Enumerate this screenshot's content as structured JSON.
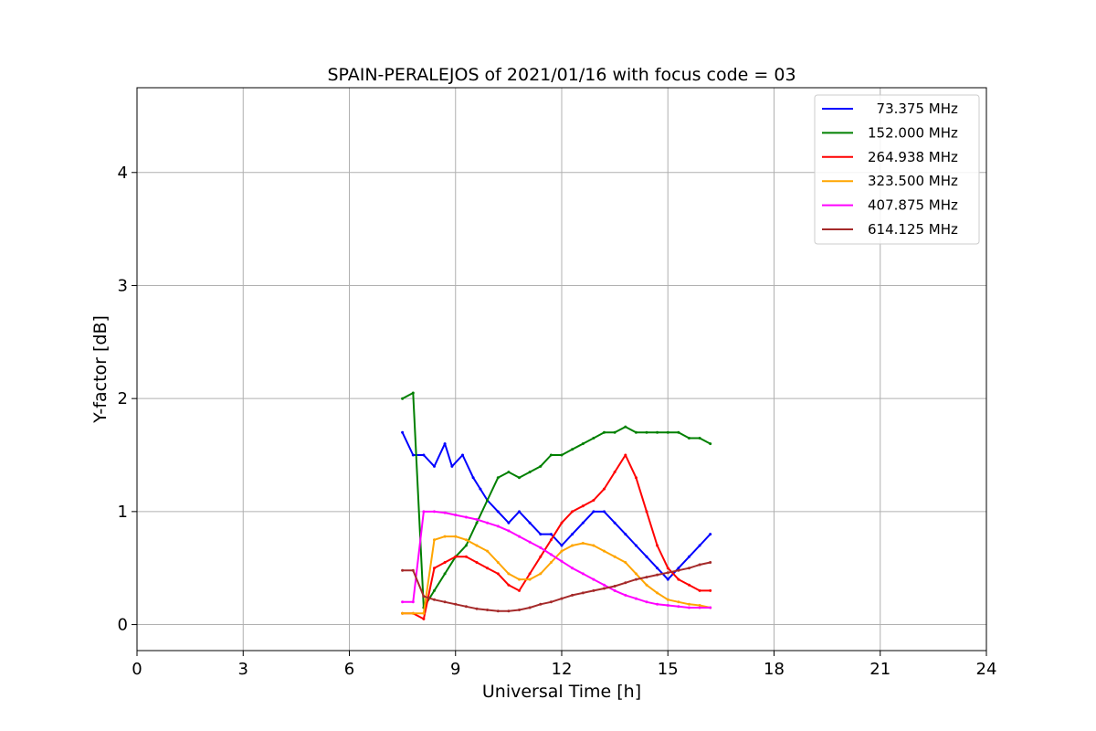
{
  "chart_data": {
    "type": "line",
    "title": "SPAIN-PERALEJOS of 2021/01/16 with focus code = 03",
    "xlabel": "Universal Time [h]",
    "ylabel": "Y-factor [dB]",
    "xlim": [
      0,
      24
    ],
    "ylim": [
      -0.23,
      4.75
    ],
    "xticks": [
      0,
      3,
      6,
      9,
      12,
      15,
      18,
      21,
      24
    ],
    "yticks": [
      0,
      1,
      2,
      3,
      4
    ],
    "grid": true,
    "legend_position": "top-right",
    "series": [
      {
        "name": "  73.375 MHz",
        "color": "#0000ff",
        "x": [
          7.5,
          7.8,
          8.1,
          8.4,
          8.7,
          8.9,
          9.2,
          9.5,
          9.7,
          9.9,
          10.2,
          10.5,
          10.8,
          11.1,
          11.4,
          11.7,
          12.0,
          12.3,
          12.6,
          12.9,
          13.2,
          13.5,
          13.8,
          14.1,
          14.4,
          14.7,
          15.0,
          15.3,
          15.6,
          15.9,
          16.2
        ],
        "y": [
          1.7,
          1.5,
          1.5,
          1.4,
          1.6,
          1.4,
          1.5,
          1.3,
          1.2,
          1.1,
          1.0,
          0.9,
          1.0,
          0.9,
          0.8,
          0.8,
          0.7,
          0.8,
          0.9,
          1.0,
          1.0,
          0.9,
          0.8,
          0.7,
          0.6,
          0.5,
          0.4,
          0.5,
          0.6,
          0.7,
          0.8
        ]
      },
      {
        "name": "152.000 MHz",
        "color": "#008000",
        "x": [
          7.5,
          7.8,
          8.1,
          8.4,
          8.7,
          9.0,
          9.3,
          9.6,
          9.9,
          10.2,
          10.5,
          10.8,
          11.1,
          11.4,
          11.7,
          12.0,
          12.3,
          12.6,
          12.9,
          13.2,
          13.5,
          13.8,
          14.1,
          14.4,
          14.7,
          15.0,
          15.3,
          15.6,
          15.9,
          16.2
        ],
        "y": [
          2.0,
          2.05,
          0.15,
          0.3,
          0.45,
          0.6,
          0.7,
          0.9,
          1.1,
          1.3,
          1.35,
          1.3,
          1.35,
          1.4,
          1.5,
          1.5,
          1.55,
          1.6,
          1.65,
          1.7,
          1.7,
          1.75,
          1.7,
          1.7,
          1.7,
          1.7,
          1.7,
          1.65,
          1.65,
          1.6
        ]
      },
      {
        "name": "264.938 MHz",
        "color": "#ff0000",
        "x": [
          7.5,
          7.8,
          8.1,
          8.4,
          8.7,
          9.0,
          9.3,
          9.6,
          9.9,
          10.2,
          10.5,
          10.8,
          11.1,
          11.4,
          11.7,
          12.0,
          12.3,
          12.6,
          12.9,
          13.2,
          13.5,
          13.8,
          14.1,
          14.4,
          14.7,
          15.0,
          15.3,
          15.6,
          15.9,
          16.2
        ],
        "y": [
          0.1,
          0.1,
          0.05,
          0.5,
          0.55,
          0.6,
          0.6,
          0.55,
          0.5,
          0.45,
          0.35,
          0.3,
          0.45,
          0.6,
          0.75,
          0.9,
          1.0,
          1.05,
          1.1,
          1.2,
          1.35,
          1.5,
          1.3,
          1.0,
          0.7,
          0.5,
          0.4,
          0.35,
          0.3,
          0.3
        ]
      },
      {
        "name": "323.500 MHz",
        "color": "#ffa500",
        "x": [
          7.5,
          7.8,
          8.1,
          8.4,
          8.7,
          9.0,
          9.3,
          9.6,
          9.9,
          10.2,
          10.5,
          10.8,
          11.1,
          11.4,
          11.7,
          12.0,
          12.3,
          12.6,
          12.9,
          13.2,
          13.5,
          13.8,
          14.1,
          14.4,
          14.7,
          15.0,
          15.3,
          15.6,
          15.9,
          16.2
        ],
        "y": [
          0.1,
          0.1,
          0.1,
          0.75,
          0.78,
          0.78,
          0.75,
          0.7,
          0.65,
          0.55,
          0.45,
          0.4,
          0.4,
          0.45,
          0.55,
          0.65,
          0.7,
          0.72,
          0.7,
          0.65,
          0.6,
          0.55,
          0.45,
          0.35,
          0.28,
          0.22,
          0.2,
          0.18,
          0.17,
          0.15
        ]
      },
      {
        "name": "407.875 MHz",
        "color": "#ff00ff",
        "x": [
          7.5,
          7.8,
          8.1,
          8.4,
          8.7,
          9.0,
          9.3,
          9.6,
          9.9,
          10.2,
          10.5,
          10.8,
          11.1,
          11.4,
          11.7,
          12.0,
          12.3,
          12.6,
          12.9,
          13.2,
          13.5,
          13.8,
          14.1,
          14.4,
          14.7,
          15.0,
          15.3,
          15.6,
          15.9,
          16.2
        ],
        "y": [
          0.2,
          0.2,
          1.0,
          1.0,
          0.99,
          0.97,
          0.95,
          0.93,
          0.9,
          0.87,
          0.83,
          0.78,
          0.73,
          0.68,
          0.62,
          0.56,
          0.5,
          0.45,
          0.4,
          0.35,
          0.3,
          0.26,
          0.23,
          0.2,
          0.18,
          0.17,
          0.16,
          0.15,
          0.15,
          0.15
        ]
      },
      {
        "name": "614.125 MHz",
        "color": "#a52a2a",
        "x": [
          7.5,
          7.8,
          8.1,
          8.4,
          8.7,
          9.0,
          9.3,
          9.6,
          9.9,
          10.2,
          10.5,
          10.8,
          11.1,
          11.4,
          11.7,
          12.0,
          12.3,
          12.6,
          12.9,
          13.2,
          13.5,
          13.8,
          14.1,
          14.4,
          14.7,
          15.0,
          15.3,
          15.6,
          15.9,
          16.2
        ],
        "y": [
          0.48,
          0.48,
          0.25,
          0.22,
          0.2,
          0.18,
          0.16,
          0.14,
          0.13,
          0.12,
          0.12,
          0.13,
          0.15,
          0.18,
          0.2,
          0.23,
          0.26,
          0.28,
          0.3,
          0.32,
          0.34,
          0.37,
          0.4,
          0.42,
          0.44,
          0.46,
          0.48,
          0.5,
          0.53,
          0.55
        ]
      }
    ]
  }
}
